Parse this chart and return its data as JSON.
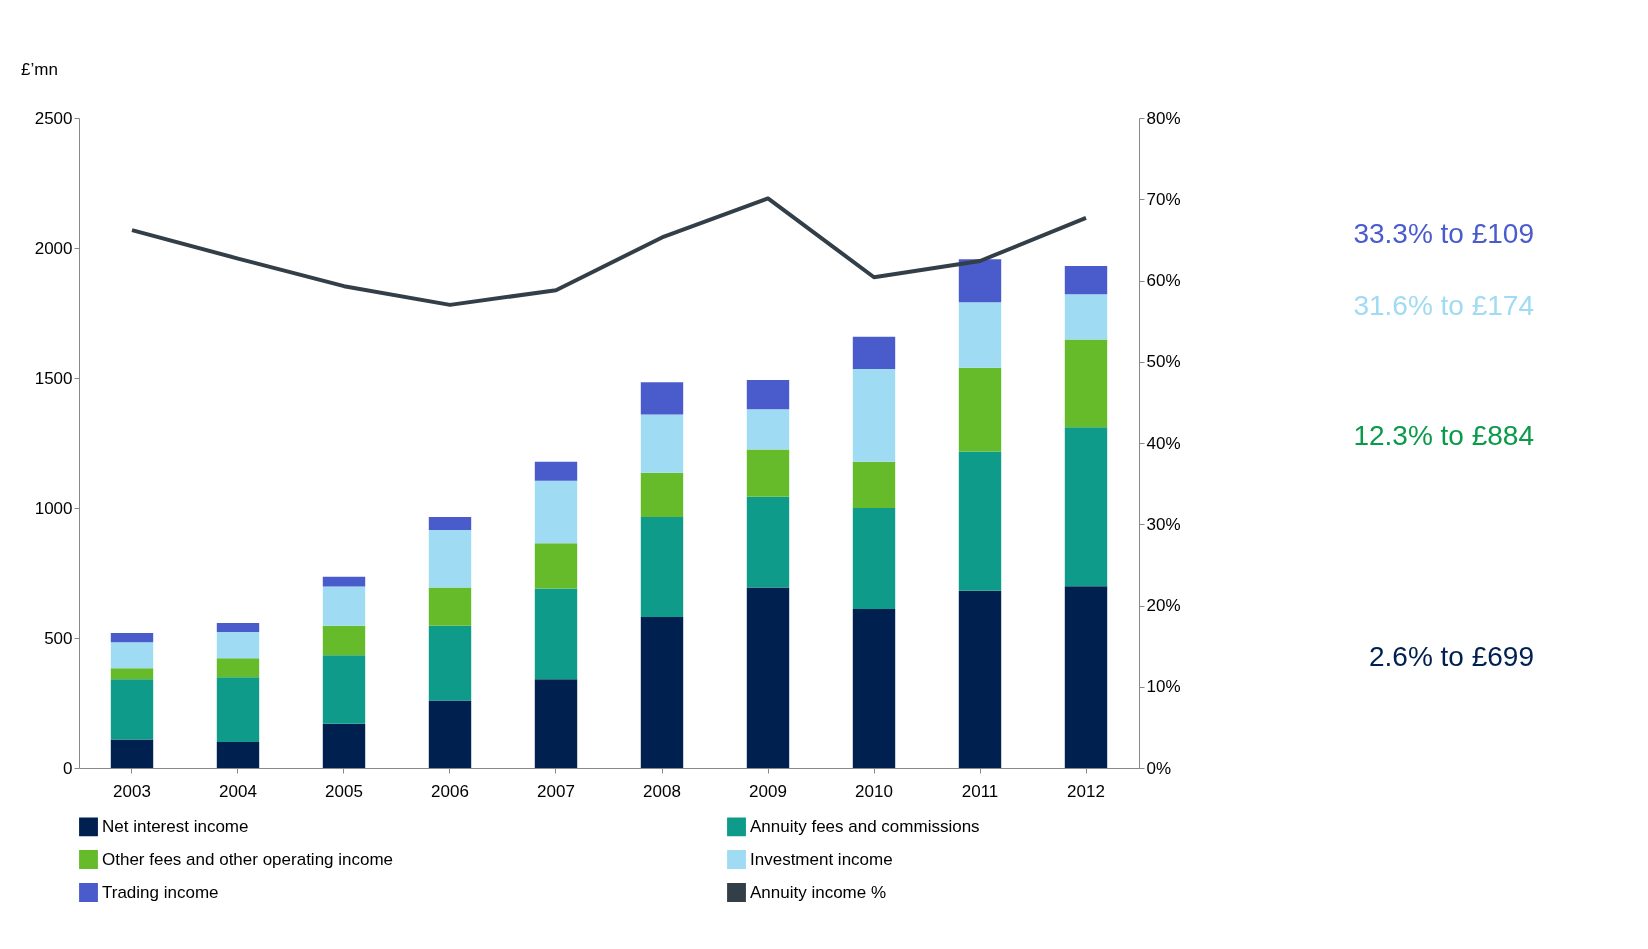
{
  "chart_data": {
    "type": "bar",
    "stacked": true,
    "ylabel": "£’mn",
    "categories": [
      "2003",
      "2004",
      "2005",
      "2006",
      "2007",
      "2008",
      "2009",
      "2010",
      "2011",
      "2012"
    ],
    "ylim": [
      0,
      2500
    ],
    "yticks": [
      0,
      500,
      1000,
      1500,
      2000,
      2500
    ],
    "y2lim": [
      0,
      80
    ],
    "y2ticks": [
      {
        "value": 0,
        "label": "0%"
      },
      {
        "value": 10,
        "label": "10%"
      },
      {
        "value": 20,
        "label": "20%"
      },
      {
        "value": 30,
        "label": "30%"
      },
      {
        "value": 40,
        "label": "40%"
      },
      {
        "value": 50,
        "label": "50%"
      },
      {
        "value": 60,
        "label": "60%"
      },
      {
        "value": 70,
        "label": "70%"
      },
      {
        "value": 80,
        "label": "80%"
      }
    ],
    "series": [
      {
        "name": "Net interest income",
        "color": "#002050",
        "values": [
          110,
          100,
          170,
          260,
          341,
          581,
          694,
          612,
          682,
          699
        ]
      },
      {
        "name": "Annuity fees and commissions",
        "color": "#0e9b8a",
        "values": [
          231,
          249,
          264,
          287,
          349,
          384,
          349,
          388,
          535,
          612
        ]
      },
      {
        "name": "Other fees and other operating income",
        "color": "#66bb2b",
        "values": [
          43,
          73,
          113,
          147,
          174,
          171,
          182,
          178,
          322,
          337
        ]
      },
      {
        "name": "Investment income",
        "color": "#9fdbf2",
        "values": [
          100,
          101,
          151,
          221,
          241,
          224,
          155,
          357,
          252,
          174
        ]
      },
      {
        "name": "Trading income",
        "color": "#4a5bcc",
        "values": [
          35,
          35,
          38,
          50,
          73,
          124,
          112,
          124,
          166,
          109
        ]
      },
      {
        "name": "Annuity income %",
        "color": "#333f48",
        "type": "line",
        "axis": "y2",
        "values": [
          66.2,
          62.7,
          59.3,
          57.0,
          58.8,
          65.3,
          70.1,
          60.4,
          62.4,
          67.7
        ]
      }
    ],
    "legend": "bottom",
    "grid": false,
    "annotations": [
      "33.3% to £109",
      "31.6% to £174",
      "12.3% to £884",
      "2.6% to £699"
    ]
  }
}
